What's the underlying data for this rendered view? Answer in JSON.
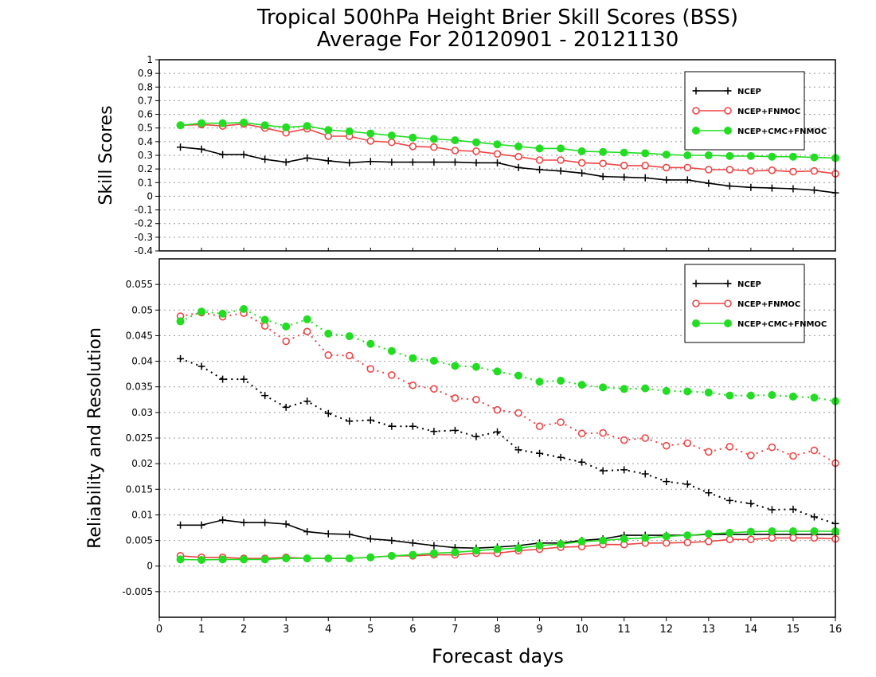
{
  "figure": {
    "title_line1": "Tropical 500hPa Height Brier Skill Scores (BSS)",
    "title_line2": "Average For 20120901 - 20121130",
    "xlabel": "Forecast days",
    "x_ticks": [
      "0",
      "1",
      "2",
      "3",
      "4",
      "5",
      "6",
      "7",
      "8",
      "9",
      "10",
      "11",
      "12",
      "13",
      "14",
      "15",
      "16"
    ]
  },
  "colors": {
    "NCEP": "#000000",
    "NCEP+FNMOC": "#ee4444",
    "NCEP+CMC+FNMOC": "#22dd22",
    "grid": "#999999"
  },
  "chart_data": [
    {
      "type": "line",
      "panel": "top",
      "ylabel": "Skill Scores",
      "xlim": [
        0,
        16
      ],
      "ylim": [
        -0.4,
        1
      ],
      "grid": true,
      "legend_position": "top-right",
      "y_ticks": [
        "-0.4",
        "-0.3",
        "-0.2",
        "-0.1",
        "0",
        "0.1",
        "0.2",
        "0.3",
        "0.4",
        "0.5",
        "0.6",
        "0.7",
        "0.8",
        "0.9",
        "1"
      ],
      "x": [
        0.5,
        1,
        1.5,
        2,
        2.5,
        3,
        3.5,
        4,
        4.5,
        5,
        5.5,
        6,
        6.5,
        7,
        7.5,
        8,
        8.5,
        9,
        9.5,
        10,
        10.5,
        11,
        11.5,
        12,
        12.5,
        13,
        13.5,
        14,
        14.5,
        15,
        15.5,
        16
      ],
      "series": [
        {
          "name": "NCEP",
          "marker": "plus",
          "linestyle": "solid",
          "values": [
            0.36,
            0.345,
            0.305,
            0.305,
            0.27,
            0.25,
            0.28,
            0.26,
            0.245,
            0.255,
            0.25,
            0.25,
            0.25,
            0.25,
            0.245,
            0.245,
            0.21,
            0.195,
            0.185,
            0.17,
            0.145,
            0.14,
            0.135,
            0.12,
            0.12,
            0.095,
            0.075,
            0.065,
            0.06,
            0.055,
            0.045,
            0.025
          ]
        },
        {
          "name": "NCEP+FNMOC",
          "marker": "open-circle",
          "linestyle": "solid",
          "values": [
            0.52,
            0.525,
            0.515,
            0.53,
            0.5,
            0.465,
            0.495,
            0.44,
            0.44,
            0.405,
            0.395,
            0.365,
            0.36,
            0.335,
            0.33,
            0.31,
            0.29,
            0.265,
            0.265,
            0.245,
            0.24,
            0.225,
            0.225,
            0.21,
            0.21,
            0.195,
            0.195,
            0.185,
            0.19,
            0.18,
            0.185,
            0.165
          ]
        },
        {
          "name": "NCEP+CMC+FNMOC",
          "marker": "filled-circle",
          "linestyle": "solid",
          "values": [
            0.52,
            0.535,
            0.535,
            0.54,
            0.52,
            0.505,
            0.515,
            0.485,
            0.475,
            0.46,
            0.445,
            0.43,
            0.42,
            0.41,
            0.395,
            0.38,
            0.365,
            0.35,
            0.35,
            0.33,
            0.325,
            0.32,
            0.315,
            0.305,
            0.3,
            0.3,
            0.295,
            0.295,
            0.29,
            0.29,
            0.285,
            0.28
          ]
        }
      ]
    },
    {
      "type": "line",
      "panel": "bottom",
      "ylabel": "Reliability and Resolution",
      "xlim": [
        0,
        16
      ],
      "ylim": [
        -0.01,
        0.06
      ],
      "grid": true,
      "legend_position": "top-right",
      "y_ticks": [
        "-0.005",
        "0",
        "0.005",
        "0.01",
        "0.015",
        "0.02",
        "0.025",
        "0.03",
        "0.035",
        "0.04",
        "0.045",
        "0.05",
        "0.055"
      ],
      "x": [
        0.5,
        1,
        1.5,
        2,
        2.5,
        3,
        3.5,
        4,
        4.5,
        5,
        5.5,
        6,
        6.5,
        7,
        7.5,
        8,
        8.5,
        9,
        9.5,
        10,
        10.5,
        11,
        11.5,
        12,
        12.5,
        13,
        13.5,
        14,
        14.5,
        15,
        15.5,
        16
      ],
      "series": [
        {
          "name": "NCEP",
          "marker": "plus",
          "linestyle": "dotted",
          "role": "resolution",
          "values": [
            0.0405,
            0.039,
            0.0365,
            0.0365,
            0.0333,
            0.031,
            0.0322,
            0.0298,
            0.0283,
            0.0285,
            0.0273,
            0.0273,
            0.0263,
            0.0265,
            0.0253,
            0.0262,
            0.0227,
            0.022,
            0.0212,
            0.0203,
            0.0186,
            0.0188,
            0.018,
            0.0165,
            0.016,
            0.0143,
            0.0128,
            0.0122,
            0.011,
            0.0111,
            0.0096,
            0.0083
          ]
        },
        {
          "name": "NCEP+FNMOC",
          "marker": "open-circle",
          "linestyle": "dotted",
          "role": "resolution",
          "values": [
            0.0488,
            0.0495,
            0.0487,
            0.0494,
            0.0469,
            0.0439,
            0.0458,
            0.0412,
            0.0411,
            0.0385,
            0.0373,
            0.0353,
            0.0346,
            0.0328,
            0.0325,
            0.0305,
            0.0299,
            0.0273,
            0.0281,
            0.0259,
            0.026,
            0.0246,
            0.025,
            0.0235,
            0.024,
            0.0223,
            0.0233,
            0.0216,
            0.0232,
            0.0215,
            0.0226,
            0.0201
          ]
        },
        {
          "name": "NCEP+CMC+FNMOC",
          "marker": "filled-circle",
          "linestyle": "dotted",
          "role": "resolution",
          "values": [
            0.0478,
            0.0497,
            0.0493,
            0.0502,
            0.0481,
            0.0468,
            0.0482,
            0.0454,
            0.0449,
            0.0434,
            0.042,
            0.0406,
            0.0401,
            0.0391,
            0.0389,
            0.038,
            0.0372,
            0.036,
            0.0362,
            0.0354,
            0.0349,
            0.0346,
            0.0347,
            0.0342,
            0.0341,
            0.0339,
            0.0333,
            0.0333,
            0.0334,
            0.0331,
            0.0329,
            0.0322
          ]
        },
        {
          "name": "NCEP",
          "marker": "plus",
          "linestyle": "solid",
          "role": "reliability",
          "values": [
            0.008,
            0.008,
            0.009,
            0.0085,
            0.0085,
            0.0082,
            0.0067,
            0.0063,
            0.0062,
            0.0053,
            0.005,
            0.0045,
            0.004,
            0.0036,
            0.0035,
            0.0037,
            0.004,
            0.0045,
            0.0045,
            0.005,
            0.0053,
            0.006,
            0.006,
            0.006,
            0.006,
            0.0062,
            0.0062,
            0.0062,
            0.0062,
            0.0062,
            0.0062,
            0.0062
          ]
        },
        {
          "name": "NCEP+FNMOC",
          "marker": "open-circle",
          "linestyle": "solid",
          "role": "reliability",
          "values": [
            0.002,
            0.0017,
            0.0017,
            0.0015,
            0.0015,
            0.0017,
            0.0015,
            0.0015,
            0.0015,
            0.0017,
            0.002,
            0.002,
            0.0022,
            0.0022,
            0.0025,
            0.0025,
            0.003,
            0.0033,
            0.0037,
            0.0038,
            0.0042,
            0.0042,
            0.0045,
            0.0045,
            0.0046,
            0.0048,
            0.0052,
            0.0052,
            0.0055,
            0.0055,
            0.0055,
            0.0053
          ]
        },
        {
          "name": "NCEP+CMC+FNMOC",
          "marker": "filled-circle",
          "linestyle": "solid",
          "role": "reliability",
          "values": [
            0.0013,
            0.0012,
            0.0013,
            0.0013,
            0.0013,
            0.0015,
            0.0015,
            0.0015,
            0.0015,
            0.0017,
            0.002,
            0.0022,
            0.0025,
            0.0027,
            0.003,
            0.0033,
            0.0035,
            0.004,
            0.0043,
            0.0048,
            0.005,
            0.0053,
            0.0055,
            0.0058,
            0.006,
            0.0063,
            0.0065,
            0.0067,
            0.0068,
            0.0068,
            0.0068,
            0.0068
          ]
        }
      ]
    }
  ]
}
